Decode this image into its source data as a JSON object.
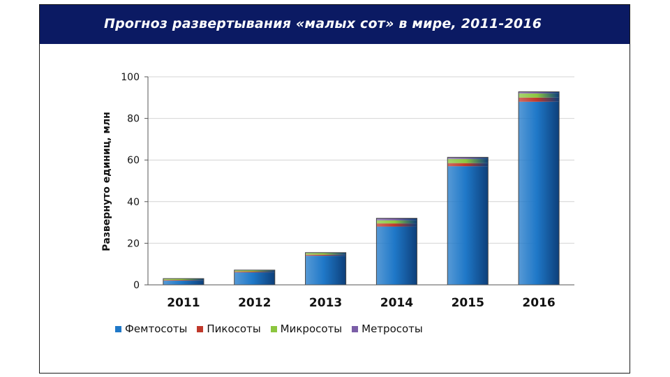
{
  "colors": {
    "title_bg": "#0b1a63",
    "femto": "#1f78c8",
    "pico": "#c0392b",
    "micro": "#8cc63f",
    "metro": "#7b5ea7"
  },
  "chart_data": {
    "type": "bar",
    "stacked": true,
    "title": "Прогноз развертывания «малых сот» в мире, 2011-2016",
    "xlabel": "",
    "ylabel": "Развернуто единиц, млн",
    "ylim": [
      0,
      100
    ],
    "yticks": [
      0,
      20,
      40,
      60,
      80,
      100
    ],
    "grid": true,
    "legend_position": "bottom",
    "categories": [
      "2011",
      "2012",
      "2013",
      "2014",
      "2015",
      "2016"
    ],
    "series": [
      {
        "name": "Фемтосоты",
        "color": "#1f78c8",
        "values": [
          2,
          6,
          14,
          28,
          57,
          88
        ]
      },
      {
        "name": "Пикосоты",
        "color": "#c0392b",
        "values": [
          0.3,
          0.4,
          0.5,
          1.5,
          1.5,
          2
        ]
      },
      {
        "name": "Микросоты",
        "color": "#8cc63f",
        "values": [
          0.6,
          0.6,
          0.8,
          1.5,
          2,
          2
        ]
      },
      {
        "name": "Метросоты",
        "color": "#7b5ea7",
        "values": [
          0.1,
          0.1,
          0.2,
          1,
          0.8,
          0.8
        ]
      }
    ]
  }
}
